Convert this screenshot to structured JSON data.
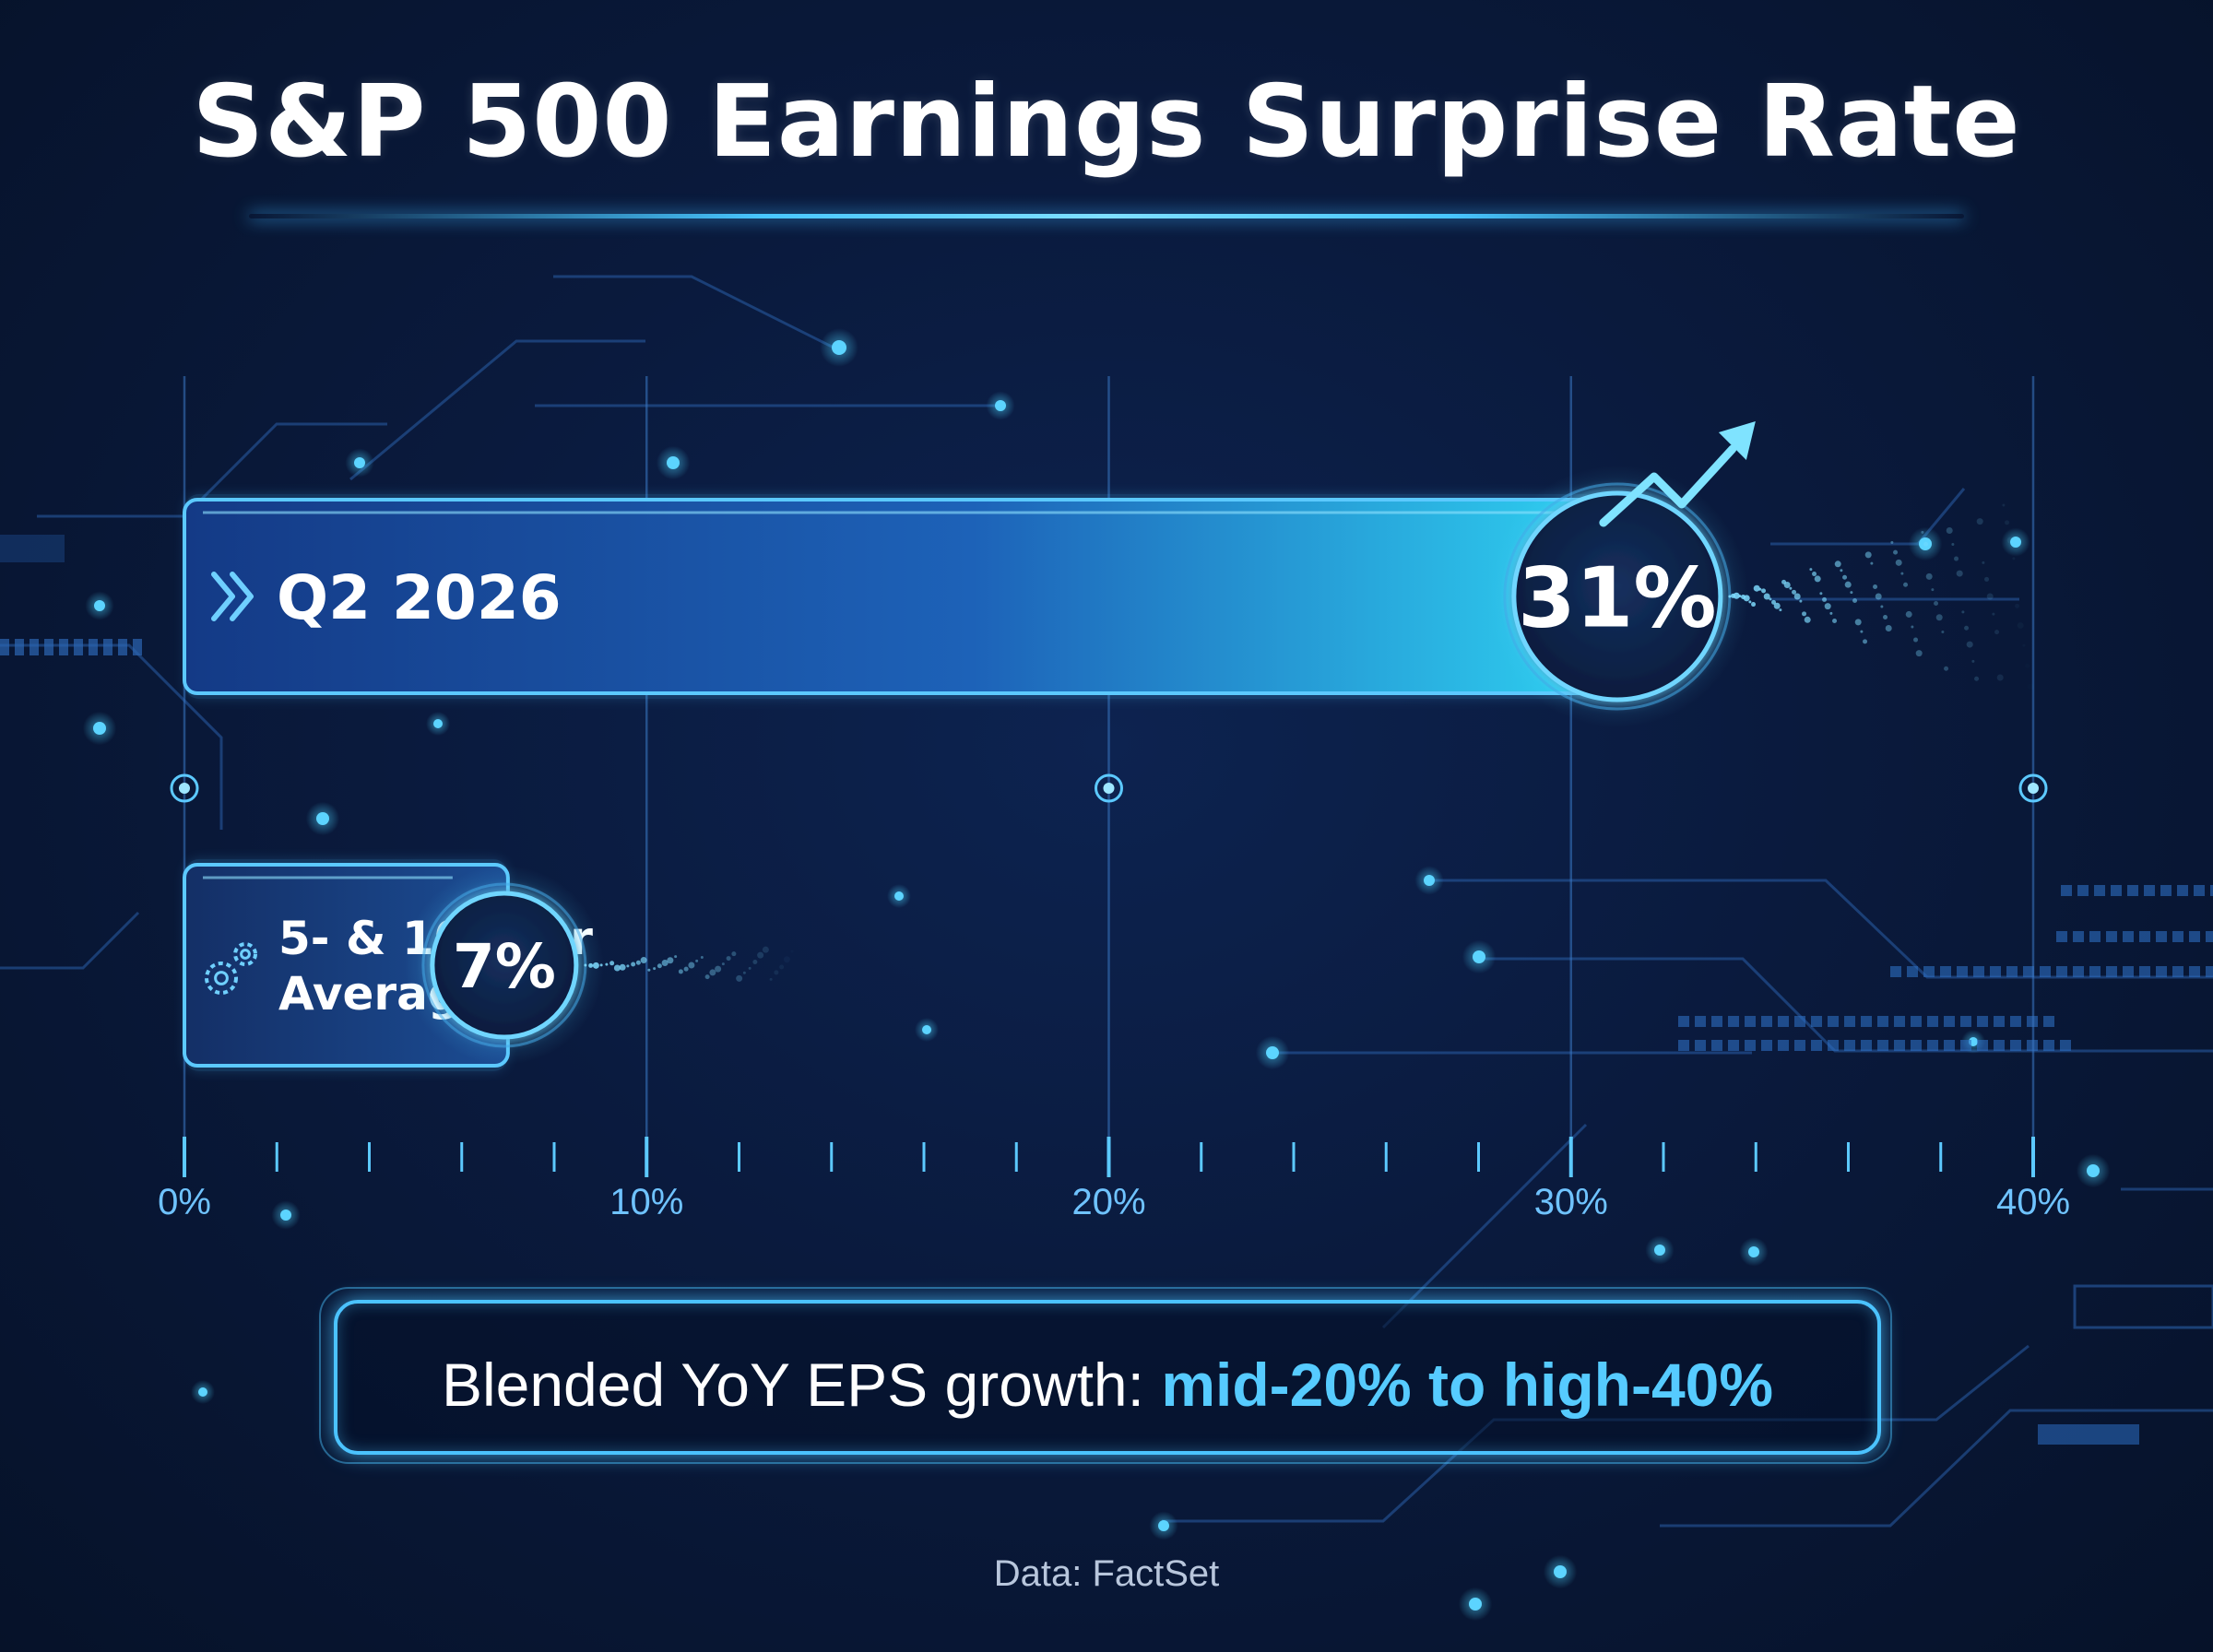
{
  "title": "S&P 500 Earnings Surprise Rate",
  "note": {
    "prefix": "Blended YoY EPS growth: ",
    "highlight": "mid-20% to high-40%"
  },
  "source": "Data: FactSet",
  "colors": {
    "accent": "#4bc3ff",
    "bar_start": "#143a86",
    "bar_end": "#2fd3f2",
    "background": "#0a1a3d",
    "text": "#ffffff",
    "tick_label": "#6fc3ff"
  },
  "icons": {
    "q2_bar": "double-chevron-right-icon",
    "avg_bar": "gears-icon",
    "q2_badge": "trend-up-arrow-icon"
  },
  "chart_data": {
    "type": "bar",
    "orientation": "horizontal",
    "categories": [
      "Q2 2026",
      "5- & 10-Year Average"
    ],
    "category_lines": [
      [
        "Q2 2026"
      ],
      [
        "5- & 10-Year",
        "Average"
      ]
    ],
    "values": [
      31,
      7
    ],
    "value_labels": [
      "31%",
      "7%"
    ],
    "xlim": [
      0,
      40
    ],
    "xticks": [
      0,
      10,
      20,
      30,
      40
    ],
    "xtick_labels": [
      "0%",
      "10%",
      "20%",
      "30%",
      "40%"
    ],
    "grid": true,
    "title": "S&P 500 Earnings Surprise Rate",
    "xlabel": "",
    "ylabel": ""
  }
}
